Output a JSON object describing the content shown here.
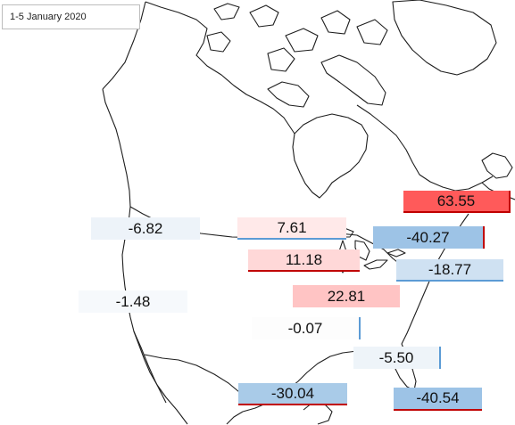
{
  "title": "1-5 January 2020",
  "colors": {
    "strong_red": "#ff5a5a",
    "light_red": "#ffc8c8",
    "pale_red": "#ffe9e9",
    "strong_blue": "#9dc3e6",
    "light_blue": "#cfe1f2",
    "pale_blue": "#edf3f9",
    "map_line": "#1e1e1e"
  },
  "labels": [
    {
      "id": "northeast",
      "value": "63.55",
      "fill": "#ff5a5a"
    },
    {
      "id": "pacific-nw",
      "value": "-6.82",
      "fill": "#edf3f9"
    },
    {
      "id": "north-central",
      "value": "7.61",
      "fill": "#ffe9e9"
    },
    {
      "id": "great-lakes",
      "value": "-40.27",
      "fill": "#9dc3e6"
    },
    {
      "id": "midwest",
      "value": "11.18",
      "fill": "#ffd8d8"
    },
    {
      "id": "mid-atlantic",
      "value": "-18.77",
      "fill": "#cfe1f2"
    },
    {
      "id": "west",
      "value": "-1.48",
      "fill": "#f6f9fc"
    },
    {
      "id": "central",
      "value": "22.81",
      "fill": "#ffc4c4"
    },
    {
      "id": "south-central",
      "value": "-0.07",
      "fill": "#fdfdfd"
    },
    {
      "id": "southeast",
      "value": "-5.50",
      "fill": "#eef4f9"
    },
    {
      "id": "gulf-coast",
      "value": "-30.04",
      "fill": "#a9cbe8"
    },
    {
      "id": "florida",
      "value": "-40.54",
      "fill": "#9dc3e6"
    }
  ]
}
